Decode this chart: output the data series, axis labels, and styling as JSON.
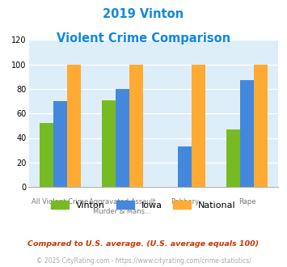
{
  "title_line1": "2019 Vinton",
  "title_line2": "Violent Crime Comparison",
  "groups": [
    {
      "label_top": "",
      "label_bot": "All Violent Crime",
      "Vinton": 52,
      "Iowa": 70,
      "National": 100
    },
    {
      "label_top": "Aggravated Assault",
      "label_bot": "Murder & Mans...",
      "Vinton": 71,
      "Iowa": 80,
      "National": 100
    },
    {
      "label_top": "",
      "label_bot": "Robbery",
      "Vinton": 0,
      "Iowa": 33,
      "National": 100
    },
    {
      "label_top": "",
      "label_bot": "Rape",
      "Vinton": 47,
      "Iowa": 87,
      "National": 100
    }
  ],
  "colors": {
    "Vinton": "#77bb22",
    "Iowa": "#4488dd",
    "National": "#ffaa33"
  },
  "ylim": [
    0,
    120
  ],
  "yticks": [
    0,
    20,
    40,
    60,
    80,
    100,
    120
  ],
  "title_color": "#1188dd",
  "bg_color": "#ddeef8",
  "footnote1": "Compared to U.S. average. (U.S. average equals 100)",
  "footnote2": "© 2025 CityRating.com - https://www.cityrating.com/crime-statistics/",
  "footnote1_color": "#cc3300",
  "footnote2_color": "#aaaaaa",
  "url_color": "#4488dd"
}
